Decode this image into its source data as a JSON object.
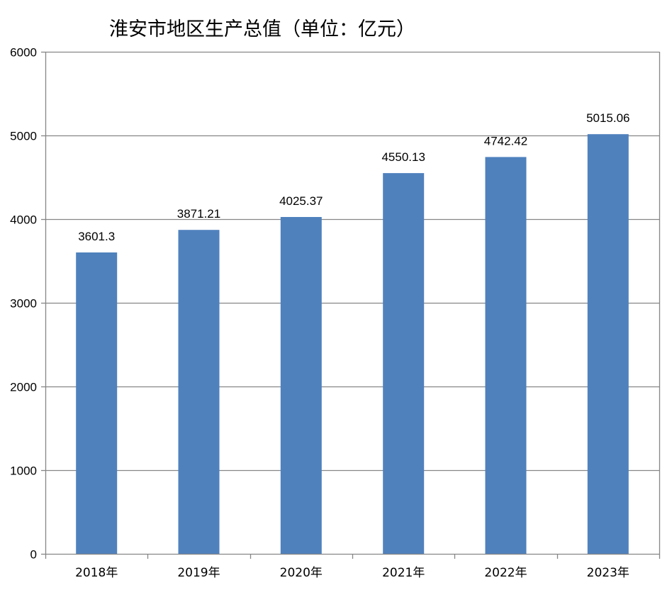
{
  "chart_data": {
    "type": "bar",
    "title": "淮安市地区生产总值（单位：亿元）",
    "categories": [
      "2018年",
      "2019年",
      "2020年",
      "2021年",
      "2022年",
      "2023年"
    ],
    "values": [
      3601.3,
      3871.21,
      4025.37,
      4550.13,
      4742.42,
      5015.06
    ],
    "data_labels": [
      "3601.3",
      "3871.21",
      "4025.37",
      "4550.13",
      "4742.42",
      "5015.06"
    ],
    "ylim": [
      0,
      6000
    ],
    "yticks": [
      0,
      1000,
      2000,
      3000,
      4000,
      5000,
      6000
    ],
    "ytick_labels": [
      "0",
      "1000",
      "2000",
      "3000",
      "4000",
      "5000",
      "6000"
    ],
    "xlabel": "",
    "ylabel": "",
    "grid": true,
    "legend": "none",
    "colors": {
      "bar": "#4F81BD",
      "grid": "#868686",
      "axis": "#868686"
    }
  }
}
